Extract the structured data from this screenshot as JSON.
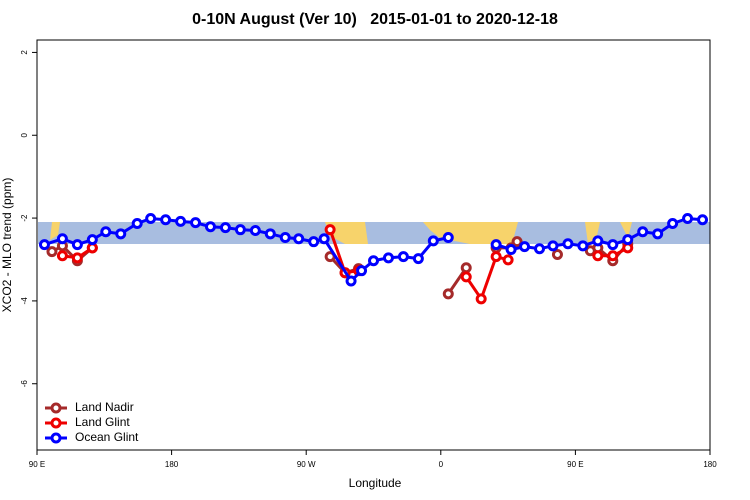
{
  "chart_data": {
    "type": "line",
    "title": "0-10N August (Ver 10)   2015-01-01 to 2020-12-18",
    "xlabel": "Longitude",
    "ylabel": "XCO2 - MLO trend (ppm)",
    "xlim": [
      90,
      540
    ],
    "ylim": [
      -7.6,
      2.3
    ],
    "xticks": [
      {
        "value": 90,
        "label": "90 E"
      },
      {
        "value": 180,
        "label": "180"
      },
      {
        "value": 270,
        "label": "90 W"
      },
      {
        "value": 360,
        "label": "0"
      },
      {
        "value": 450,
        "label": "90 E"
      },
      {
        "value": 540,
        "label": "180"
      }
    ],
    "yticks": [
      -6,
      -4,
      -2,
      0,
      2
    ],
    "legend": "bottom-left",
    "series": [
      {
        "name": "Land Nadir",
        "color": "#a52a2a",
        "x": [
          100,
          107,
          117,
          127,
          null,
          286,
          296,
          305,
          null,
          365,
          377,
          null,
          397,
          407,
          411,
          null,
          438,
          null,
          460,
          465,
          475,
          485
        ],
        "values": [
          -2.81,
          -2.67,
          -3.03,
          -2.72,
          null,
          -2.93,
          -3.32,
          -3.22,
          null,
          -3.83,
          -3.2,
          null,
          -2.72,
          -2.72,
          -2.57,
          null,
          -2.88,
          null,
          -2.79,
          -2.72,
          -3.03,
          -2.62
        ]
      },
      {
        "name": "Land Glint",
        "color": "#ee0000",
        "x": [
          107,
          117,
          127,
          null,
          286,
          296,
          305,
          null,
          377,
          387,
          397,
          405,
          null,
          465,
          475,
          485
        ],
        "values": [
          -2.91,
          -2.96,
          -2.72,
          null,
          -2.28,
          -3.32,
          -3.27,
          null,
          -3.42,
          -3.95,
          -2.93,
          -3.01,
          null,
          -2.91,
          -2.91,
          -2.72
        ]
      },
      {
        "name": "Ocean Glint",
        "color": "#0000ff",
        "x": [
          95,
          107,
          117,
          127,
          136,
          146,
          157,
          166,
          176,
          186,
          196,
          206,
          216,
          226,
          236,
          246,
          256,
          265,
          275,
          282,
          300,
          307,
          315,
          325,
          335,
          345,
          355,
          365,
          null,
          397,
          407,
          416,
          426,
          435,
          445,
          455,
          465,
          475,
          485,
          495,
          505,
          515,
          525,
          535
        ],
        "values": [
          -2.64,
          -2.5,
          -2.64,
          -2.52,
          -2.33,
          -2.38,
          -2.13,
          -2.01,
          -2.04,
          -2.08,
          -2.11,
          -2.21,
          -2.23,
          -2.28,
          -2.3,
          -2.38,
          -2.47,
          -2.5,
          -2.57,
          -2.5,
          -3.52,
          -3.27,
          -3.03,
          -2.96,
          -2.93,
          -2.98,
          -2.55,
          -2.47,
          null,
          -2.64,
          -2.76,
          -2.69,
          -2.74,
          -2.67,
          -2.62,
          -2.67,
          -2.55,
          -2.64,
          -2.52,
          -2.33,
          -2.38,
          -2.13,
          -2.01,
          -2.04
        ]
      }
    ]
  }
}
